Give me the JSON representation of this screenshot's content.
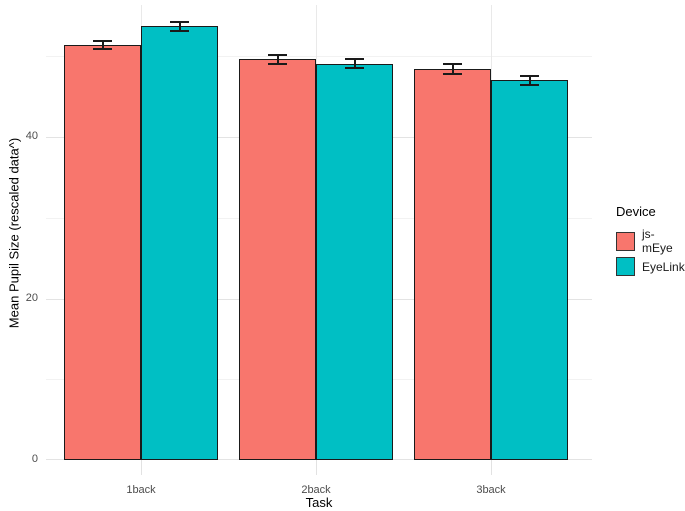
{
  "chart_data": {
    "type": "bar",
    "title": "",
    "categories": [
      "1back",
      "2back",
      "3back"
    ],
    "series": [
      {
        "name": "js-mEye",
        "color": "#F8766D",
        "values": [
          51.4,
          49.6,
          48.4
        ],
        "errors": [
          0.5,
          0.5,
          0.6
        ]
      },
      {
        "name": "EyeLink",
        "color": "#00BFC4",
        "values": [
          53.7,
          49.1,
          47.0
        ],
        "errors": [
          0.6,
          0.6,
          0.6
        ]
      }
    ],
    "xlabel": "Task",
    "ylabel": "Mean Pupil Size (rescaled data^)",
    "ylim": [
      0,
      56.3
    ],
    "yticks": [
      0,
      20,
      40
    ],
    "yminor": [
      10,
      30,
      50
    ],
    "grid": "on",
    "legend": {
      "title": "Device",
      "position": "right"
    },
    "bar_border_color": "#1a1a1a",
    "errorbar_color": "#1a1a1a",
    "major_grid_color": "#e3e3e3",
    "minor_grid_color": "#f2f2f2",
    "vertical_grid_color": "#e9e9e9",
    "tick_label_color": "#4d4d4d",
    "background": "#ffffff"
  }
}
